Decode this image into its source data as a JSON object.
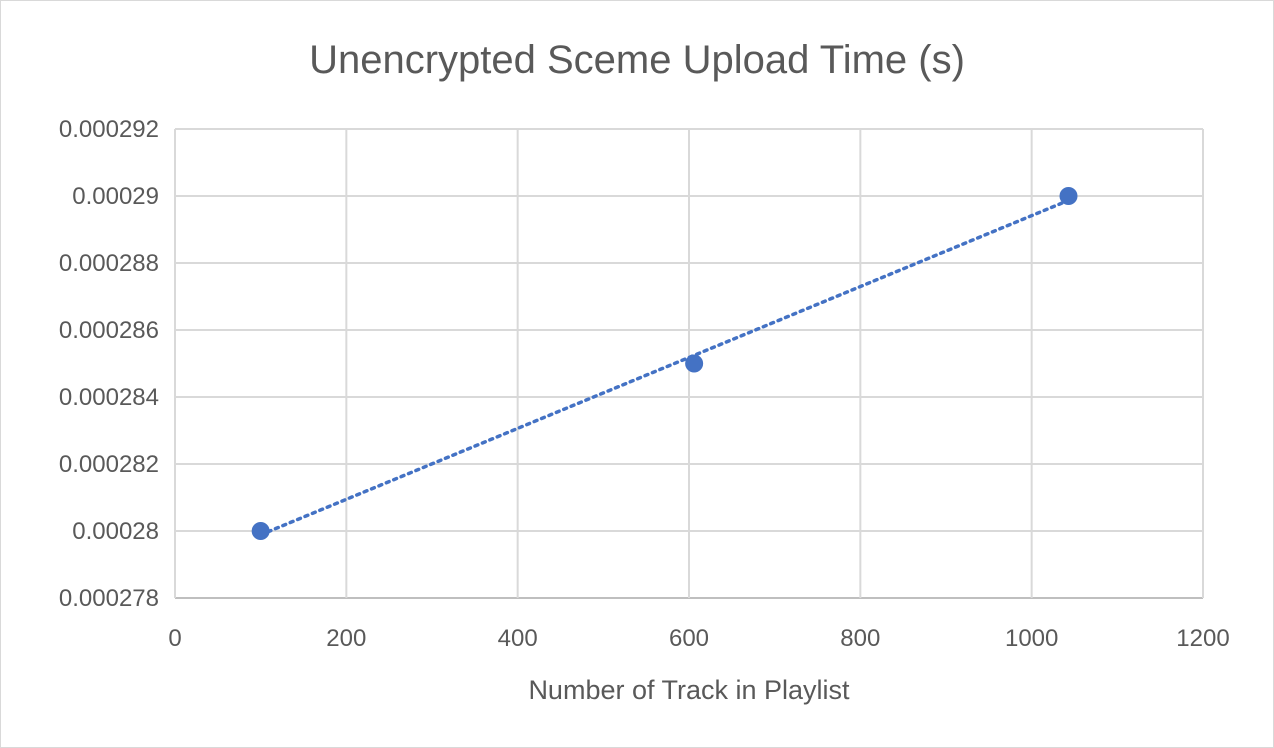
{
  "chart_data": {
    "type": "scatter",
    "title": "Unencrypted Sceme Upload Time (s)",
    "xlabel": "Number of Track in Playlist",
    "ylabel": "",
    "xlim": [
      0,
      1200
    ],
    "ylim": [
      0.000278,
      0.000292
    ],
    "xticks": [
      0,
      200,
      400,
      600,
      800,
      1000,
      1200
    ],
    "xtick_labels": [
      "0",
      "200",
      "400",
      "600",
      "800",
      "1000",
      "1200"
    ],
    "yticks": [
      0.000278,
      0.00028,
      0.000282,
      0.000284,
      0.000286,
      0.000288,
      0.00029,
      0.000292
    ],
    "ytick_labels": [
      "0.000278",
      "0.00028",
      "0.000282",
      "0.000284",
      "0.000286",
      "0.000288",
      "0.00029",
      "0.000292"
    ],
    "grid": true,
    "legend": "none",
    "series": [
      {
        "x": [
          100,
          606,
          1043
        ],
        "y": [
          0.00028,
          0.000285,
          0.00029
        ],
        "color": "#4472c4",
        "marker": "circle"
      }
    ],
    "trendline": {
      "type": "linear",
      "style": "dotted",
      "color": "#4472c4"
    }
  }
}
